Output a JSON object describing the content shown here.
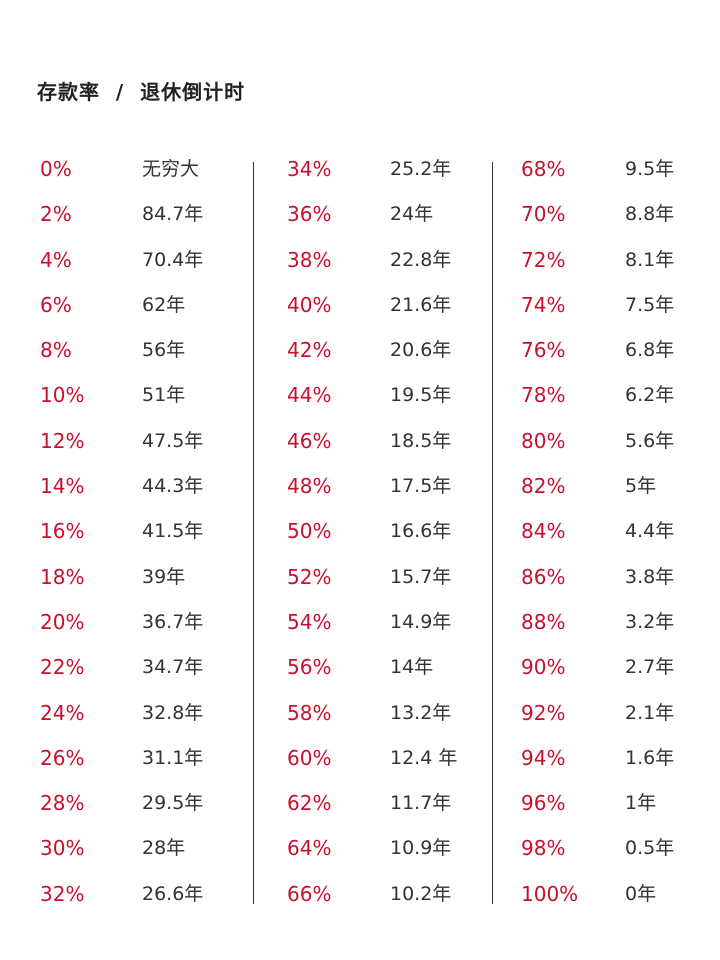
{
  "title": "存款率  /  退休倒计时",
  "table": {
    "columns": [
      {
        "rows": [
          {
            "rate": "0%",
            "years": "无穷大"
          },
          {
            "rate": "2%",
            "years": "84.7年"
          },
          {
            "rate": "4%",
            "years": "70.4年"
          },
          {
            "rate": "6%",
            "years": "62年"
          },
          {
            "rate": "8%",
            "years": "56年"
          },
          {
            "rate": "10%",
            "years": "51年"
          },
          {
            "rate": "12%",
            "years": "47.5年"
          },
          {
            "rate": "14%",
            "years": "44.3年"
          },
          {
            "rate": "16%",
            "years": "41.5年"
          },
          {
            "rate": "18%",
            "years": "39年"
          },
          {
            "rate": "20%",
            "years": "36.7年"
          },
          {
            "rate": "22%",
            "years": "34.7年"
          },
          {
            "rate": "24%",
            "years": "32.8年"
          },
          {
            "rate": "26%",
            "years": "31.1年"
          },
          {
            "rate": "28%",
            "years": "29.5年"
          },
          {
            "rate": "30%",
            "years": "28年"
          },
          {
            "rate": "32%",
            "years": "26.6年"
          }
        ]
      },
      {
        "rows": [
          {
            "rate": "34%",
            "years": "25.2年"
          },
          {
            "rate": "36%",
            "years": "24年"
          },
          {
            "rate": "38%",
            "years": "22.8年"
          },
          {
            "rate": "40%",
            "years": "21.6年"
          },
          {
            "rate": "42%",
            "years": "20.6年"
          },
          {
            "rate": "44%",
            "years": "19.5年"
          },
          {
            "rate": "46%",
            "years": "18.5年"
          },
          {
            "rate": "48%",
            "years": "17.5年"
          },
          {
            "rate": "50%",
            "years": "16.6年"
          },
          {
            "rate": "52%",
            "years": "15.7年"
          },
          {
            "rate": "54%",
            "years": "14.9年"
          },
          {
            "rate": "56%",
            "years": "14年"
          },
          {
            "rate": "58%",
            "years": "13.2年"
          },
          {
            "rate": "60%",
            "years": "12.4 年"
          },
          {
            "rate": "62%",
            "years": "11.7年"
          },
          {
            "rate": "64%",
            "years": "10.9年"
          },
          {
            "rate": "66%",
            "years": "10.2年"
          }
        ]
      },
      {
        "rows": [
          {
            "rate": "68%",
            "years": "9.5年"
          },
          {
            "rate": "70%",
            "years": "8.8年"
          },
          {
            "rate": "72%",
            "years": "8.1年"
          },
          {
            "rate": "74%",
            "years": "7.5年"
          },
          {
            "rate": "76%",
            "years": "6.8年"
          },
          {
            "rate": "78%",
            "years": "6.2年"
          },
          {
            "rate": "80%",
            "years": "5.6年"
          },
          {
            "rate": "82%",
            "years": "5年"
          },
          {
            "rate": "84%",
            "years": "4.4年"
          },
          {
            "rate": "86%",
            "years": "3.8年"
          },
          {
            "rate": "88%",
            "years": "3.2年"
          },
          {
            "rate": "90%",
            "years": "2.7年"
          },
          {
            "rate": "92%",
            "years": "2.1年"
          },
          {
            "rate": "94%",
            "years": "1.6年"
          },
          {
            "rate": "96%",
            "years": "1年"
          },
          {
            "rate": "98%",
            "years": "0.5年"
          },
          {
            "rate": "100%",
            "years": "0年"
          }
        ]
      }
    ]
  },
  "colors": {
    "rate": "#c8102e",
    "years": "#333333",
    "title": "#222222",
    "divider": "#333333"
  }
}
